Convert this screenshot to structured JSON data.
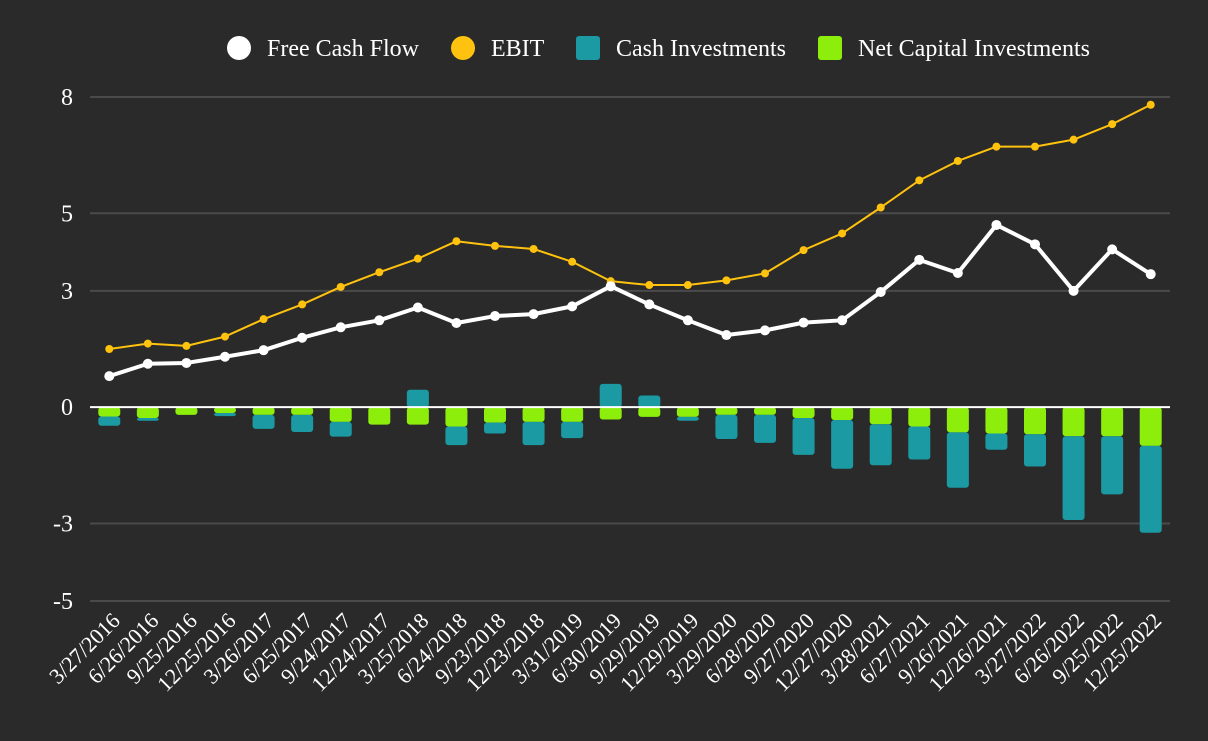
{
  "colors": {
    "background": "#2a2a2a",
    "grid": "#4a4a4a",
    "zero_line": "#ffffff",
    "text": "#ffffff"
  },
  "chart_data": {
    "type": "bar",
    "title": "",
    "xlabel": "",
    "ylabel": "",
    "ylim": [
      -5,
      8
    ],
    "yticks": [
      8,
      5,
      3,
      0,
      -3,
      -5
    ],
    "grid": true,
    "legend_position": "top",
    "categories": [
      "3/27/2016",
      "6/26/2016",
      "9/25/2016",
      "12/25/2016",
      "3/26/2017",
      "6/25/2017",
      "9/24/2017",
      "12/24/2017",
      "3/25/2018",
      "6/24/2018",
      "9/23/2018",
      "12/23/2018",
      "3/31/2019",
      "6/30/2019",
      "9/29/2019",
      "12/29/2019",
      "3/29/2020",
      "6/28/2020",
      "9/27/2020",
      "12/27/2020",
      "3/28/2021",
      "6/27/2021",
      "9/26/2021",
      "12/26/2021",
      "3/27/2022",
      "6/26/2022",
      "9/25/2022",
      "12/25/2022"
    ],
    "series": [
      {
        "name": "Free Cash Flow",
        "kind": "line",
        "color": "#ffffff",
        "values": [
          0.8,
          1.12,
          1.14,
          1.3,
          1.47,
          1.79,
          2.06,
          2.24,
          2.57,
          2.17,
          2.35,
          2.4,
          2.6,
          3.12,
          2.65,
          2.24,
          1.86,
          1.98,
          2.18,
          2.24,
          2.97,
          3.8,
          3.46,
          4.7,
          4.2,
          3.0,
          4.07,
          3.43
        ]
      },
      {
        "name": "EBIT",
        "kind": "line",
        "color": "#ffc20e",
        "values": [
          1.5,
          1.64,
          1.58,
          1.82,
          2.27,
          2.65,
          3.1,
          3.48,
          3.83,
          4.28,
          4.16,
          4.08,
          3.75,
          3.25,
          3.15,
          3.15,
          3.27,
          3.45,
          4.05,
          4.48,
          5.15,
          5.85,
          6.35,
          6.72,
          6.72,
          6.9,
          7.3,
          7.8
        ]
      },
      {
        "name": "Cash Investments",
        "kind": "bar",
        "color": "#1b9aa4",
        "values": [
          -0.24,
          -0.07,
          0.0,
          -0.08,
          -0.36,
          -0.44,
          -0.38,
          0.0,
          0.45,
          -0.48,
          -0.28,
          -0.6,
          -0.42,
          0.6,
          0.3,
          -0.1,
          -0.62,
          -0.72,
          -0.95,
          -1.26,
          -1.06,
          -0.85,
          -1.43,
          -0.42,
          -0.83,
          -2.16,
          -1.5,
          -2.24
        ]
      },
      {
        "name": "Net Capital Investments",
        "kind": "bar",
        "color": "#8cee0a",
        "values": [
          -0.24,
          -0.28,
          -0.2,
          -0.15,
          -0.2,
          -0.2,
          -0.38,
          -0.45,
          -0.45,
          -0.5,
          -0.4,
          -0.38,
          -0.38,
          -0.32,
          -0.25,
          -0.25,
          -0.2,
          -0.2,
          -0.28,
          -0.33,
          -0.44,
          -0.5,
          -0.65,
          -0.68,
          -0.7,
          -0.75,
          -0.75,
          -1.0
        ]
      }
    ]
  }
}
